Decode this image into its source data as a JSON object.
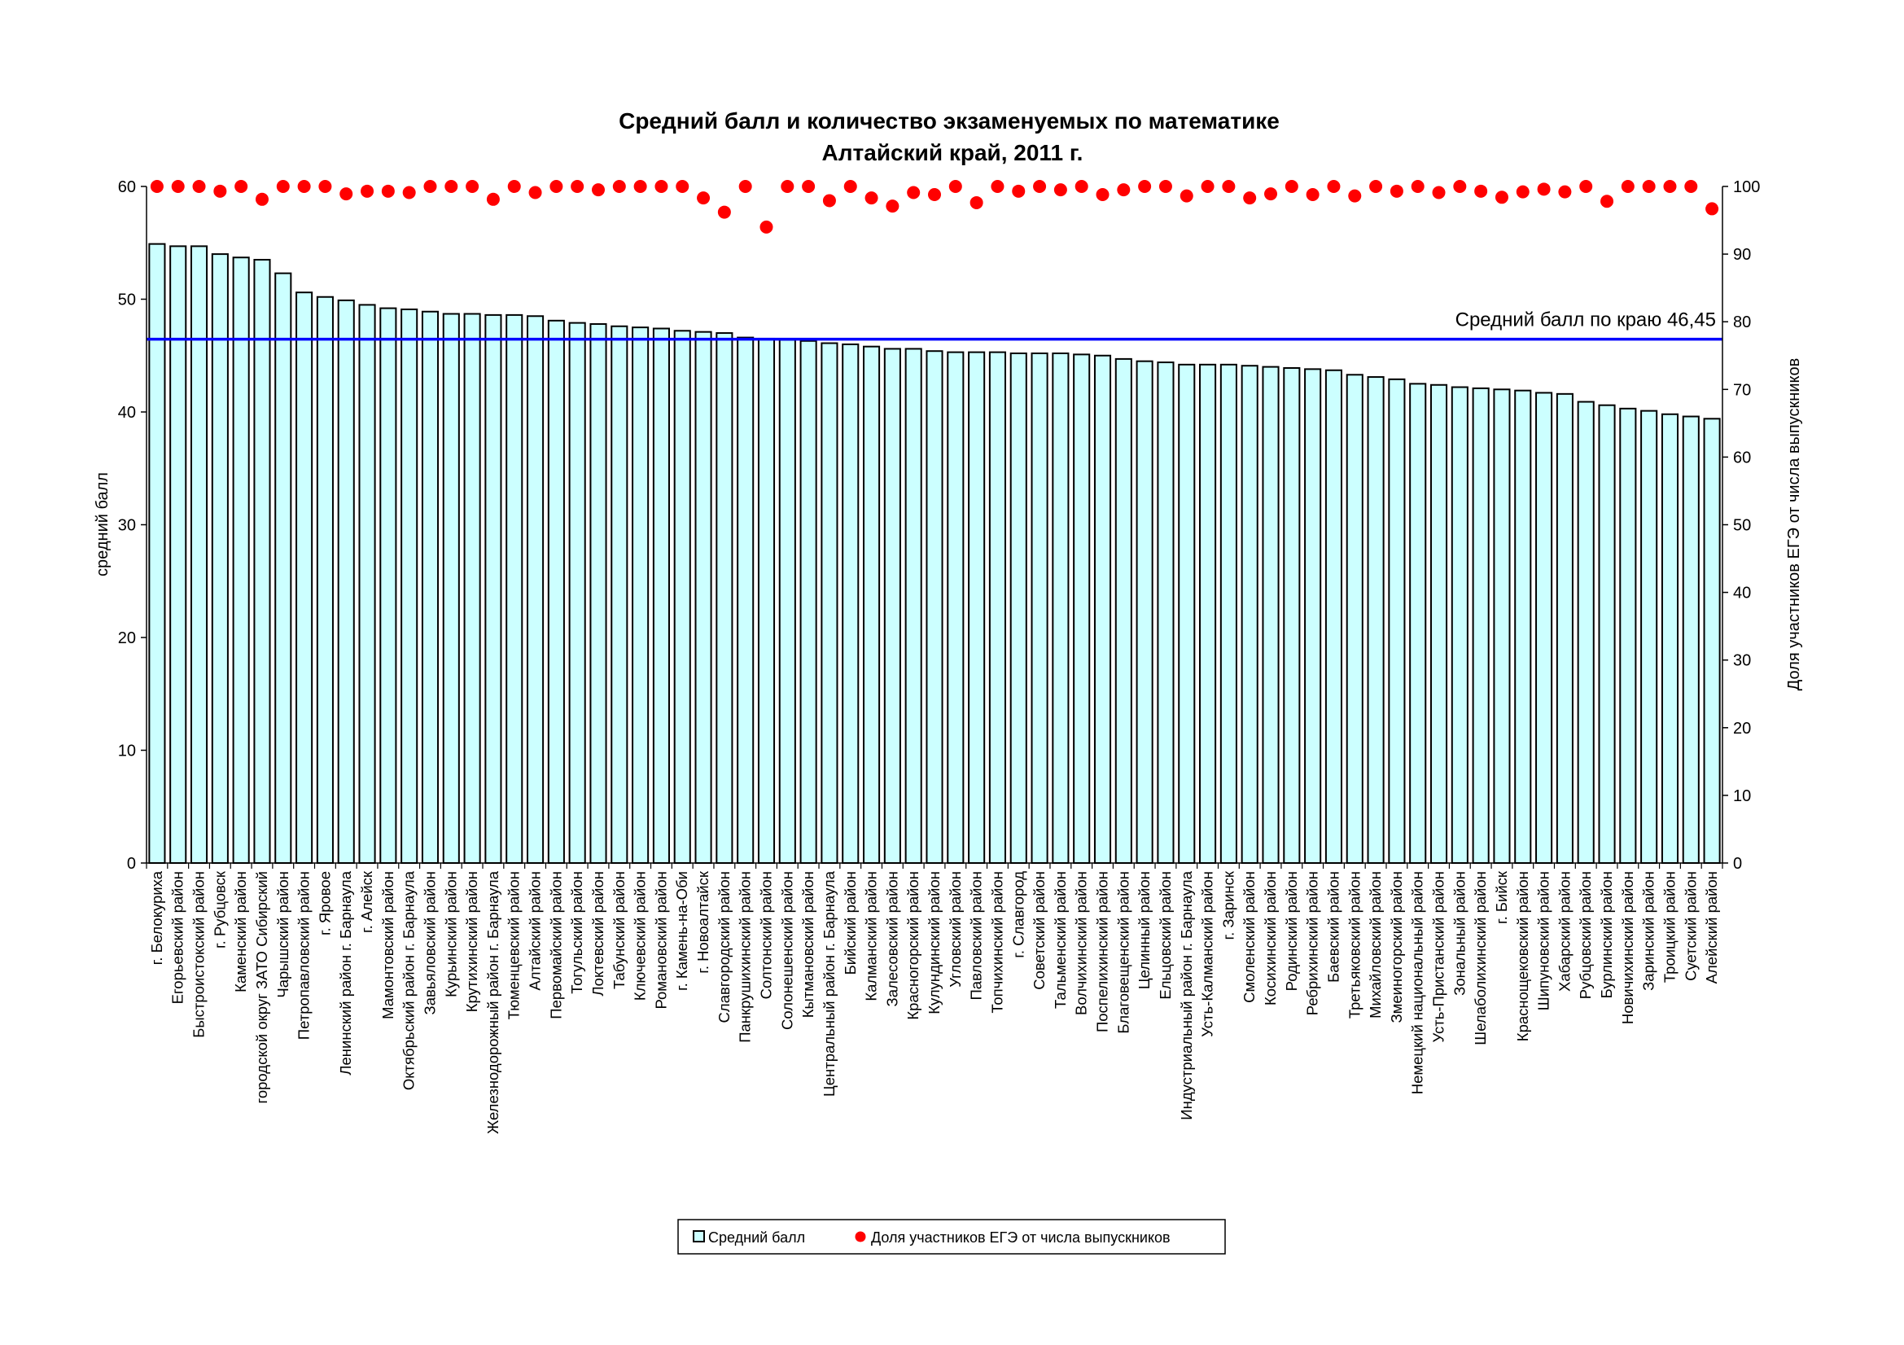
{
  "chart_data": {
    "type": "bar",
    "title": "Средний балл и количество экзаменуемых по математике",
    "subtitle": "Алтайский край, 2011 г.",
    "ylabel": "средний балл",
    "y2label": "Доля участников ЕГЭ от числа выпускников",
    "ylim": [
      0,
      60
    ],
    "y2lim": [
      0,
      100
    ],
    "yticks": [
      "0",
      "10",
      "20",
      "30",
      "40",
      "50",
      "60"
    ],
    "y2ticks": [
      "0",
      "10",
      "20",
      "30",
      "40",
      "50",
      "60",
      "70",
      "80",
      "90",
      "100"
    ],
    "reference_line": {
      "value": 46.45,
      "label": "Средний балл по краю 46,45",
      "color": "#0000ff"
    },
    "bar_color": "#ccffff",
    "dot_color": "#ff0000",
    "legend_position": "bottom",
    "categories": [
      "г. Белокуриха",
      "Егорьевский район",
      "Быстроистокский район",
      "г. Рубцовск",
      "Каменский район",
      "городской округ ЗАТО Сибирский",
      "Чарышский район",
      "Петропавловский район",
      "г. Яровое",
      "Ленинский район г. Барнаула",
      "г. Алейск",
      "Мамонтовский район",
      "Октябрьский район г. Барнаула",
      "Завьяловский район",
      "Курьинский район",
      "Крутихинский район",
      "Железнодорожный район г. Барнаула",
      "Тюменцевский район",
      "Алтайский район",
      "Первомайский район",
      "Тогульский район",
      "Локтевский район",
      "Табунский район",
      "Ключевский район",
      "Романовский район",
      "г. Камень-на-Оби",
      "г. Новоалтайск",
      "Славгородский район",
      "Панкрушихинский район",
      "Солтонский район",
      "Солонешенский район",
      "Кытмановский район",
      "Центральный район г. Барнаула",
      "Бийский район",
      "Калманский район",
      "Залесовский район",
      "Красногорский район",
      "Кулундинский район",
      "Угловский район",
      "Павловский район",
      "Топчихинский район",
      "г. Славгород",
      "Советский район",
      "Тальменский район",
      "Волчихинский район",
      "Поспелихинский район",
      "Благовещенский район",
      "Целинный район",
      "Ельцовский район",
      "Индустриальный район г. Барнаула",
      "Усть-Калманский район",
      "г. Заринск",
      "Смоленский район",
      "Косихинский район",
      "Родинский район",
      "Ребрихинский район",
      "Баевский район",
      "Третьяковский район",
      "Михайловский район",
      "Змеиногорский район",
      "Немецкий национальный район",
      "Усть-Пристанский район",
      "Зональный район",
      "Шелаболихинский район",
      "г. Бийск",
      "Краснощековский район",
      "Шипуновский район",
      "Хабарский район",
      "Рубцовский район",
      "Бурлинский район",
      "Новичихинский район",
      "Заринский район",
      "Троицкий район",
      "Суетский район",
      "Алейский район"
    ],
    "series": [
      {
        "name": "Средний балл",
        "type": "bar",
        "axis": "left",
        "values": [
          54.9,
          54.7,
          54.7,
          54.0,
          53.7,
          53.5,
          52.3,
          50.6,
          50.2,
          49.9,
          49.5,
          49.2,
          49.1,
          48.9,
          48.7,
          48.7,
          48.6,
          48.6,
          48.5,
          48.1,
          47.9,
          47.8,
          47.6,
          47.5,
          47.4,
          47.2,
          47.1,
          47.0,
          46.6,
          46.5,
          46.4,
          46.3,
          46.1,
          46.0,
          45.8,
          45.6,
          45.6,
          45.4,
          45.3,
          45.3,
          45.3,
          45.2,
          45.2,
          45.2,
          45.1,
          45.0,
          44.7,
          44.5,
          44.4,
          44.2,
          44.2,
          44.2,
          44.1,
          44.0,
          43.9,
          43.8,
          43.7,
          43.3,
          43.1,
          42.9,
          42.5,
          42.4,
          42.2,
          42.1,
          42.0,
          41.9,
          41.7,
          41.6,
          40.9,
          40.6,
          40.3,
          40.1,
          39.8,
          39.6,
          39.4
        ]
      },
      {
        "name": "Доля участников ЕГЭ от числа выпускников",
        "type": "scatter",
        "axis": "right",
        "values": [
          100,
          100,
          100,
          99.3,
          100,
          98.1,
          100,
          100,
          100,
          98.9,
          99.3,
          99.3,
          99.1,
          100,
          100,
          100,
          98.1,
          100,
          99.1,
          100,
          100,
          99.5,
          100,
          100,
          100,
          100,
          98.3,
          96.2,
          100,
          94.0,
          100,
          100,
          97.9,
          100,
          98.3,
          97.1,
          99.1,
          98.8,
          100,
          97.6,
          100,
          99.3,
          100,
          99.5,
          100,
          98.8,
          99.5,
          100,
          100,
          98.6,
          100,
          100,
          98.3,
          98.9,
          100,
          98.8,
          100,
          98.6,
          100,
          99.3,
          100,
          99.1,
          100,
          99.3,
          98.4,
          99.2,
          99.6,
          99.2,
          100,
          97.8,
          100,
          100,
          100,
          100,
          96.7
        ]
      }
    ],
    "legend": {
      "bar_label": "Средний балл",
      "dot_label": "Доля участников ЕГЭ от числа выпускников"
    }
  }
}
